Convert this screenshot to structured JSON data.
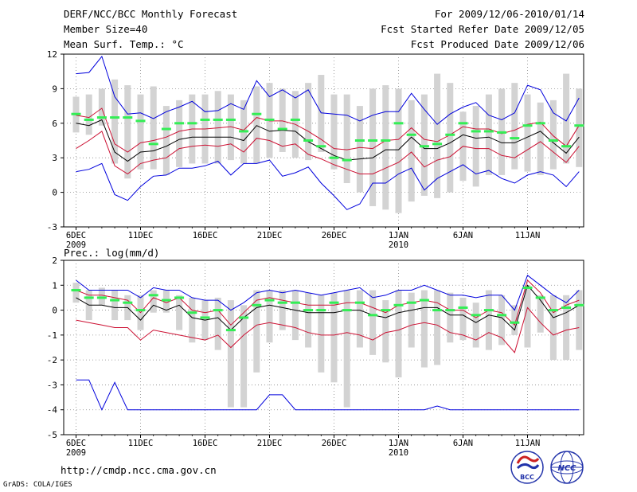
{
  "header": {
    "title": "DERF/NCC/BCC Monthly Forecast",
    "member_size": "Member Size=40",
    "variable": "Mean Surf. Temp.: °C",
    "forecast_for": "For 2009/12/06-2010/01/14",
    "started": "Fcst Started Refer Date 2009/12/05",
    "produced": "Fcst Produced Date 2009/12/06"
  },
  "footer": {
    "url": "http://cmdp.ncc.cma.gov.cn",
    "grads": "GrADS: COLA/IGES",
    "logo_bcc": "BCC",
    "logo_ncc": "NCC"
  },
  "colors": {
    "box": "#d3d3d3",
    "green": "#33ee55",
    "blue": "#0000dd",
    "red": "#cc1133",
    "mean": "#000000",
    "grid": "#888888"
  },
  "chart_data": [
    {
      "type": "box-spread",
      "id": "temp",
      "title": "",
      "ylabel": "Mean Surf. Temp.: °C",
      "ylim": [
        -3,
        12
      ],
      "yticks": [
        -3,
        0,
        3,
        6,
        9,
        12
      ],
      "xticks": [
        {
          "day": 1,
          "label": "6DEC",
          "sub": "2009"
        },
        {
          "day": 6,
          "label": "11DEC",
          "sub": ""
        },
        {
          "day": 11,
          "label": "16DEC",
          "sub": ""
        },
        {
          "day": 16,
          "label": "21DEC",
          "sub": ""
        },
        {
          "day": 21,
          "label": "26DEC",
          "sub": ""
        },
        {
          "day": 26,
          "label": "1JAN",
          "sub": "2010"
        },
        {
          "day": 31,
          "label": "6JAN",
          "sub": ""
        },
        {
          "day": 36,
          "label": "11JAN",
          "sub": ""
        }
      ],
      "days": 40,
      "box_low": [
        5.2,
        5.0,
        5.8,
        2.5,
        1.2,
        2.0,
        2.0,
        1.5,
        2.2,
        2.5,
        2.5,
        2.5,
        2.8,
        2.5,
        2.5,
        3.0,
        3.5,
        3.0,
        2.8,
        3.5,
        2.0,
        0.8,
        0.0,
        -1.2,
        -1.5,
        -1.8,
        -0.8,
        -0.3,
        -0.5,
        0.0,
        1.0,
        0.5,
        1.5,
        1.5,
        2.0,
        1.8,
        1.5,
        2.0,
        2.5,
        2.2
      ],
      "box_high": [
        8.3,
        8.5,
        9.0,
        9.8,
        9.3,
        8.5,
        9.2,
        7.5,
        8.0,
        8.5,
        8.5,
        8.8,
        8.5,
        8.0,
        9.2,
        9.5,
        9.0,
        8.8,
        9.5,
        10.2,
        8.5,
        8.5,
        7.5,
        9.0,
        9.3,
        9.0,
        8.0,
        8.5,
        10.3,
        9.5,
        7.0,
        7.5,
        8.5,
        9.0,
        9.5,
        8.5,
        7.8,
        8.0,
        10.3,
        9.0
      ],
      "green": [
        6.8,
        6.3,
        6.5,
        6.5,
        6.5,
        6.2,
        4.2,
        5.5,
        6.0,
        6.0,
        6.3,
        6.3,
        6.3,
        5.3,
        6.8,
        6.3,
        5.5,
        6.3,
        4.5,
        4.0,
        3.0,
        2.8,
        4.5,
        4.5,
        4.5,
        6.0,
        5.0,
        4.0,
        4.2,
        5.0,
        6.0,
        5.3,
        5.3,
        5.2,
        4.7,
        5.8,
        6.0,
        4.5,
        4.0,
        5.8
      ],
      "mean": [
        6.0,
        5.8,
        6.3,
        3.5,
        2.7,
        3.5,
        3.6,
        4.0,
        4.6,
        4.8,
        4.8,
        4.8,
        4.8,
        4.5,
        5.8,
        5.3,
        5.4,
        5.3,
        4.4,
        3.8,
        3.2,
        2.8,
        2.9,
        3.0,
        3.7,
        3.7,
        4.8,
        3.8,
        3.8,
        4.3,
        5.0,
        4.7,
        4.8,
        4.3,
        4.3,
        4.8,
        5.3,
        4.3,
        3.4,
        4.8
      ],
      "red_high": [
        6.7,
        6.5,
        7.3,
        4.2,
        3.5,
        4.3,
        4.5,
        4.8,
        5.3,
        5.5,
        5.5,
        5.6,
        5.7,
        5.4,
        6.5,
        6.2,
        6.2,
        5.9,
        5.3,
        4.6,
        3.8,
        3.7,
        3.9,
        3.8,
        4.5,
        4.6,
        5.6,
        4.6,
        4.4,
        5.0,
        5.7,
        5.5,
        5.5,
        5.1,
        5.4,
        5.9,
        6.1,
        4.9,
        4.0,
        5.8
      ],
      "red_low": [
        3.8,
        4.5,
        5.3,
        2.3,
        1.6,
        2.5,
        2.8,
        3.0,
        3.8,
        4.0,
        4.1,
        4.0,
        4.2,
        3.5,
        4.7,
        4.5,
        4.0,
        4.2,
        3.3,
        2.9,
        2.4,
        2.0,
        1.6,
        1.6,
        2.1,
        2.6,
        3.5,
        2.2,
        2.8,
        3.1,
        4.0,
        3.8,
        3.8,
        3.2,
        3.0,
        3.7,
        4.4,
        3.5,
        2.6,
        4.0
      ],
      "blue_high": [
        10.3,
        10.4,
        11.8,
        8.3,
        6.8,
        6.9,
        6.4,
        7.0,
        7.4,
        7.9,
        7.0,
        7.1,
        7.7,
        7.2,
        9.7,
        8.3,
        8.9,
        8.2,
        8.9,
        6.9,
        6.8,
        6.7,
        6.2,
        6.7,
        7.0,
        7.0,
        8.6,
        7.2,
        5.9,
        6.8,
        7.4,
        7.8,
        6.7,
        6.3,
        6.9,
        9.3,
        8.9,
        6.9,
        6.2,
        8.2
      ],
      "blue_low": [
        1.8,
        2.0,
        2.5,
        -0.2,
        -0.7,
        0.5,
        1.4,
        1.5,
        2.1,
        2.1,
        2.3,
        2.7,
        1.5,
        2.5,
        2.5,
        2.8,
        1.4,
        1.7,
        2.2,
        0.8,
        -0.3,
        -1.5,
        -1.0,
        0.8,
        0.8,
        1.6,
        2.1,
        0.2,
        1.2,
        1.8,
        2.4,
        1.6,
        1.9,
        1.2,
        0.8,
        1.5,
        1.8,
        1.5,
        0.5,
        1.8
      ]
    },
    {
      "type": "box-spread",
      "id": "prec",
      "title": "",
      "ylabel": "Prec.: log(mm/d)",
      "ylim": [
        -5,
        2
      ],
      "yticks": [
        -5,
        -4,
        -3,
        -2,
        -1,
        0,
        1,
        2
      ],
      "xticks": [
        {
          "day": 1,
          "label": "6DEC",
          "sub": "2009"
        },
        {
          "day": 6,
          "label": "11DEC",
          "sub": ""
        },
        {
          "day": 11,
          "label": "16DEC",
          "sub": ""
        },
        {
          "day": 16,
          "label": "21DEC",
          "sub": ""
        },
        {
          "day": 21,
          "label": "26DEC",
          "sub": ""
        },
        {
          "day": 26,
          "label": "1JAN",
          "sub": "2010"
        },
        {
          "day": 31,
          "label": "6JAN",
          "sub": ""
        },
        {
          "day": 36,
          "label": "11JAN",
          "sub": ""
        }
      ],
      "days": 40,
      "box_low": [
        0.3,
        -0.4,
        0.2,
        -0.4,
        -0.4,
        -0.8,
        -0.1,
        -0.1,
        -0.8,
        -1.3,
        -1.2,
        -1.6,
        -3.9,
        -3.9,
        -2.5,
        -1.3,
        -0.8,
        -1.2,
        -1.5,
        -2.5,
        -2.9,
        -3.9,
        -1.5,
        -1.8,
        -2.1,
        -2.7,
        -1.5,
        -2.3,
        -2.2,
        -1.3,
        -1.2,
        -1.5,
        -1.6,
        -1.4,
        -1.0,
        -1.5,
        -0.9,
        -2.0,
        -2.0,
        -1.6
      ],
      "box_high": [
        1.1,
        0.8,
        0.9,
        0.8,
        0.6,
        0.6,
        0.8,
        0.8,
        0.6,
        0.5,
        0.4,
        0.5,
        0.4,
        0.2,
        0.8,
        0.8,
        0.8,
        0.8,
        0.7,
        0.6,
        0.7,
        0.8,
        0.8,
        0.8,
        0.4,
        0.8,
        0.7,
        0.8,
        0.8,
        0.7,
        0.5,
        0.3,
        0.8,
        0.6,
        0.2,
        1.0,
        0.6,
        0.6,
        0.6,
        0.8
      ],
      "green": [
        0.8,
        0.5,
        0.5,
        0.4,
        0.3,
        0.0,
        0.6,
        0.4,
        0.5,
        -0.1,
        -0.3,
        0.0,
        -0.8,
        -0.3,
        0.2,
        0.4,
        0.3,
        0.3,
        0.0,
        0.0,
        0.3,
        0.0,
        0.3,
        -0.2,
        0.0,
        0.2,
        0.3,
        0.4,
        0.0,
        0.0,
        0.1,
        -0.2,
        0.0,
        -0.2,
        -0.5,
        0.9,
        0.5,
        0.0,
        0.1,
        0.2
      ],
      "mean": [
        0.5,
        0.2,
        0.2,
        0.1,
        0.1,
        -0.4,
        0.2,
        0.0,
        0.2,
        -0.3,
        -0.4,
        -0.3,
        -0.8,
        -0.3,
        0.1,
        0.2,
        0.1,
        0.0,
        -0.1,
        -0.1,
        -0.1,
        0.0,
        0.0,
        -0.2,
        -0.3,
        -0.1,
        0.0,
        0.1,
        0.1,
        -0.2,
        -0.2,
        -0.5,
        -0.2,
        -0.3,
        -0.8,
        1.0,
        0.4,
        -0.3,
        -0.1,
        0.2
      ],
      "red_high": [
        0.8,
        0.6,
        0.6,
        0.5,
        0.4,
        -0.1,
        0.5,
        0.3,
        0.5,
        0.0,
        -0.1,
        0.0,
        -0.6,
        -0.1,
        0.4,
        0.5,
        0.4,
        0.3,
        0.2,
        0.2,
        0.2,
        0.3,
        0.3,
        0.1,
        -0.1,
        0.2,
        0.3,
        0.4,
        0.3,
        0.0,
        0.0,
        -0.3,
        0.0,
        -0.1,
        -0.6,
        1.2,
        0.7,
        -0.1,
        0.2,
        0.4
      ],
      "red_low": [
        -0.4,
        -0.5,
        -0.6,
        -0.7,
        -0.7,
        -1.2,
        -0.8,
        -0.9,
        -1.0,
        -1.1,
        -1.2,
        -1.0,
        -1.5,
        -1.0,
        -0.6,
        -0.5,
        -0.6,
        -0.7,
        -0.9,
        -1.0,
        -1.0,
        -0.9,
        -1.0,
        -1.2,
        -0.9,
        -0.8,
        -0.6,
        -0.5,
        -0.6,
        -0.9,
        -1.0,
        -1.2,
        -0.9,
        -1.1,
        -1.7,
        0.1,
        -0.5,
        -1.0,
        -0.8,
        -0.7
      ],
      "blue_high": [
        1.2,
        0.8,
        0.8,
        0.8,
        0.8,
        0.5,
        0.9,
        0.8,
        0.8,
        0.5,
        0.4,
        0.4,
        0.0,
        0.3,
        0.7,
        0.8,
        0.7,
        0.8,
        0.7,
        0.6,
        0.7,
        0.8,
        0.9,
        0.5,
        0.6,
        0.8,
        0.8,
        1.0,
        0.8,
        0.6,
        0.6,
        0.5,
        0.6,
        0.6,
        0.0,
        1.4,
        1.0,
        0.6,
        0.3,
        0.8
      ],
      "blue_low": [
        -2.8,
        -2.8,
        -4.0,
        -2.9,
        -4.0,
        -4.0,
        -4.0,
        -4.0,
        -4.0,
        -4.0,
        -4.0,
        -4.0,
        -4.0,
        -4.0,
        -4.0,
        -3.4,
        -3.4,
        -4.0,
        -4.0,
        -4.0,
        -4.0,
        -4.0,
        -4.0,
        -4.0,
        -4.0,
        -4.0,
        -4.0,
        -4.0,
        -3.85,
        -4.0,
        -4.0,
        -4.0,
        -4.0,
        -4.0,
        -4.0,
        -4.0,
        -4.0,
        -4.0,
        -4.0,
        -4.0
      ]
    }
  ]
}
